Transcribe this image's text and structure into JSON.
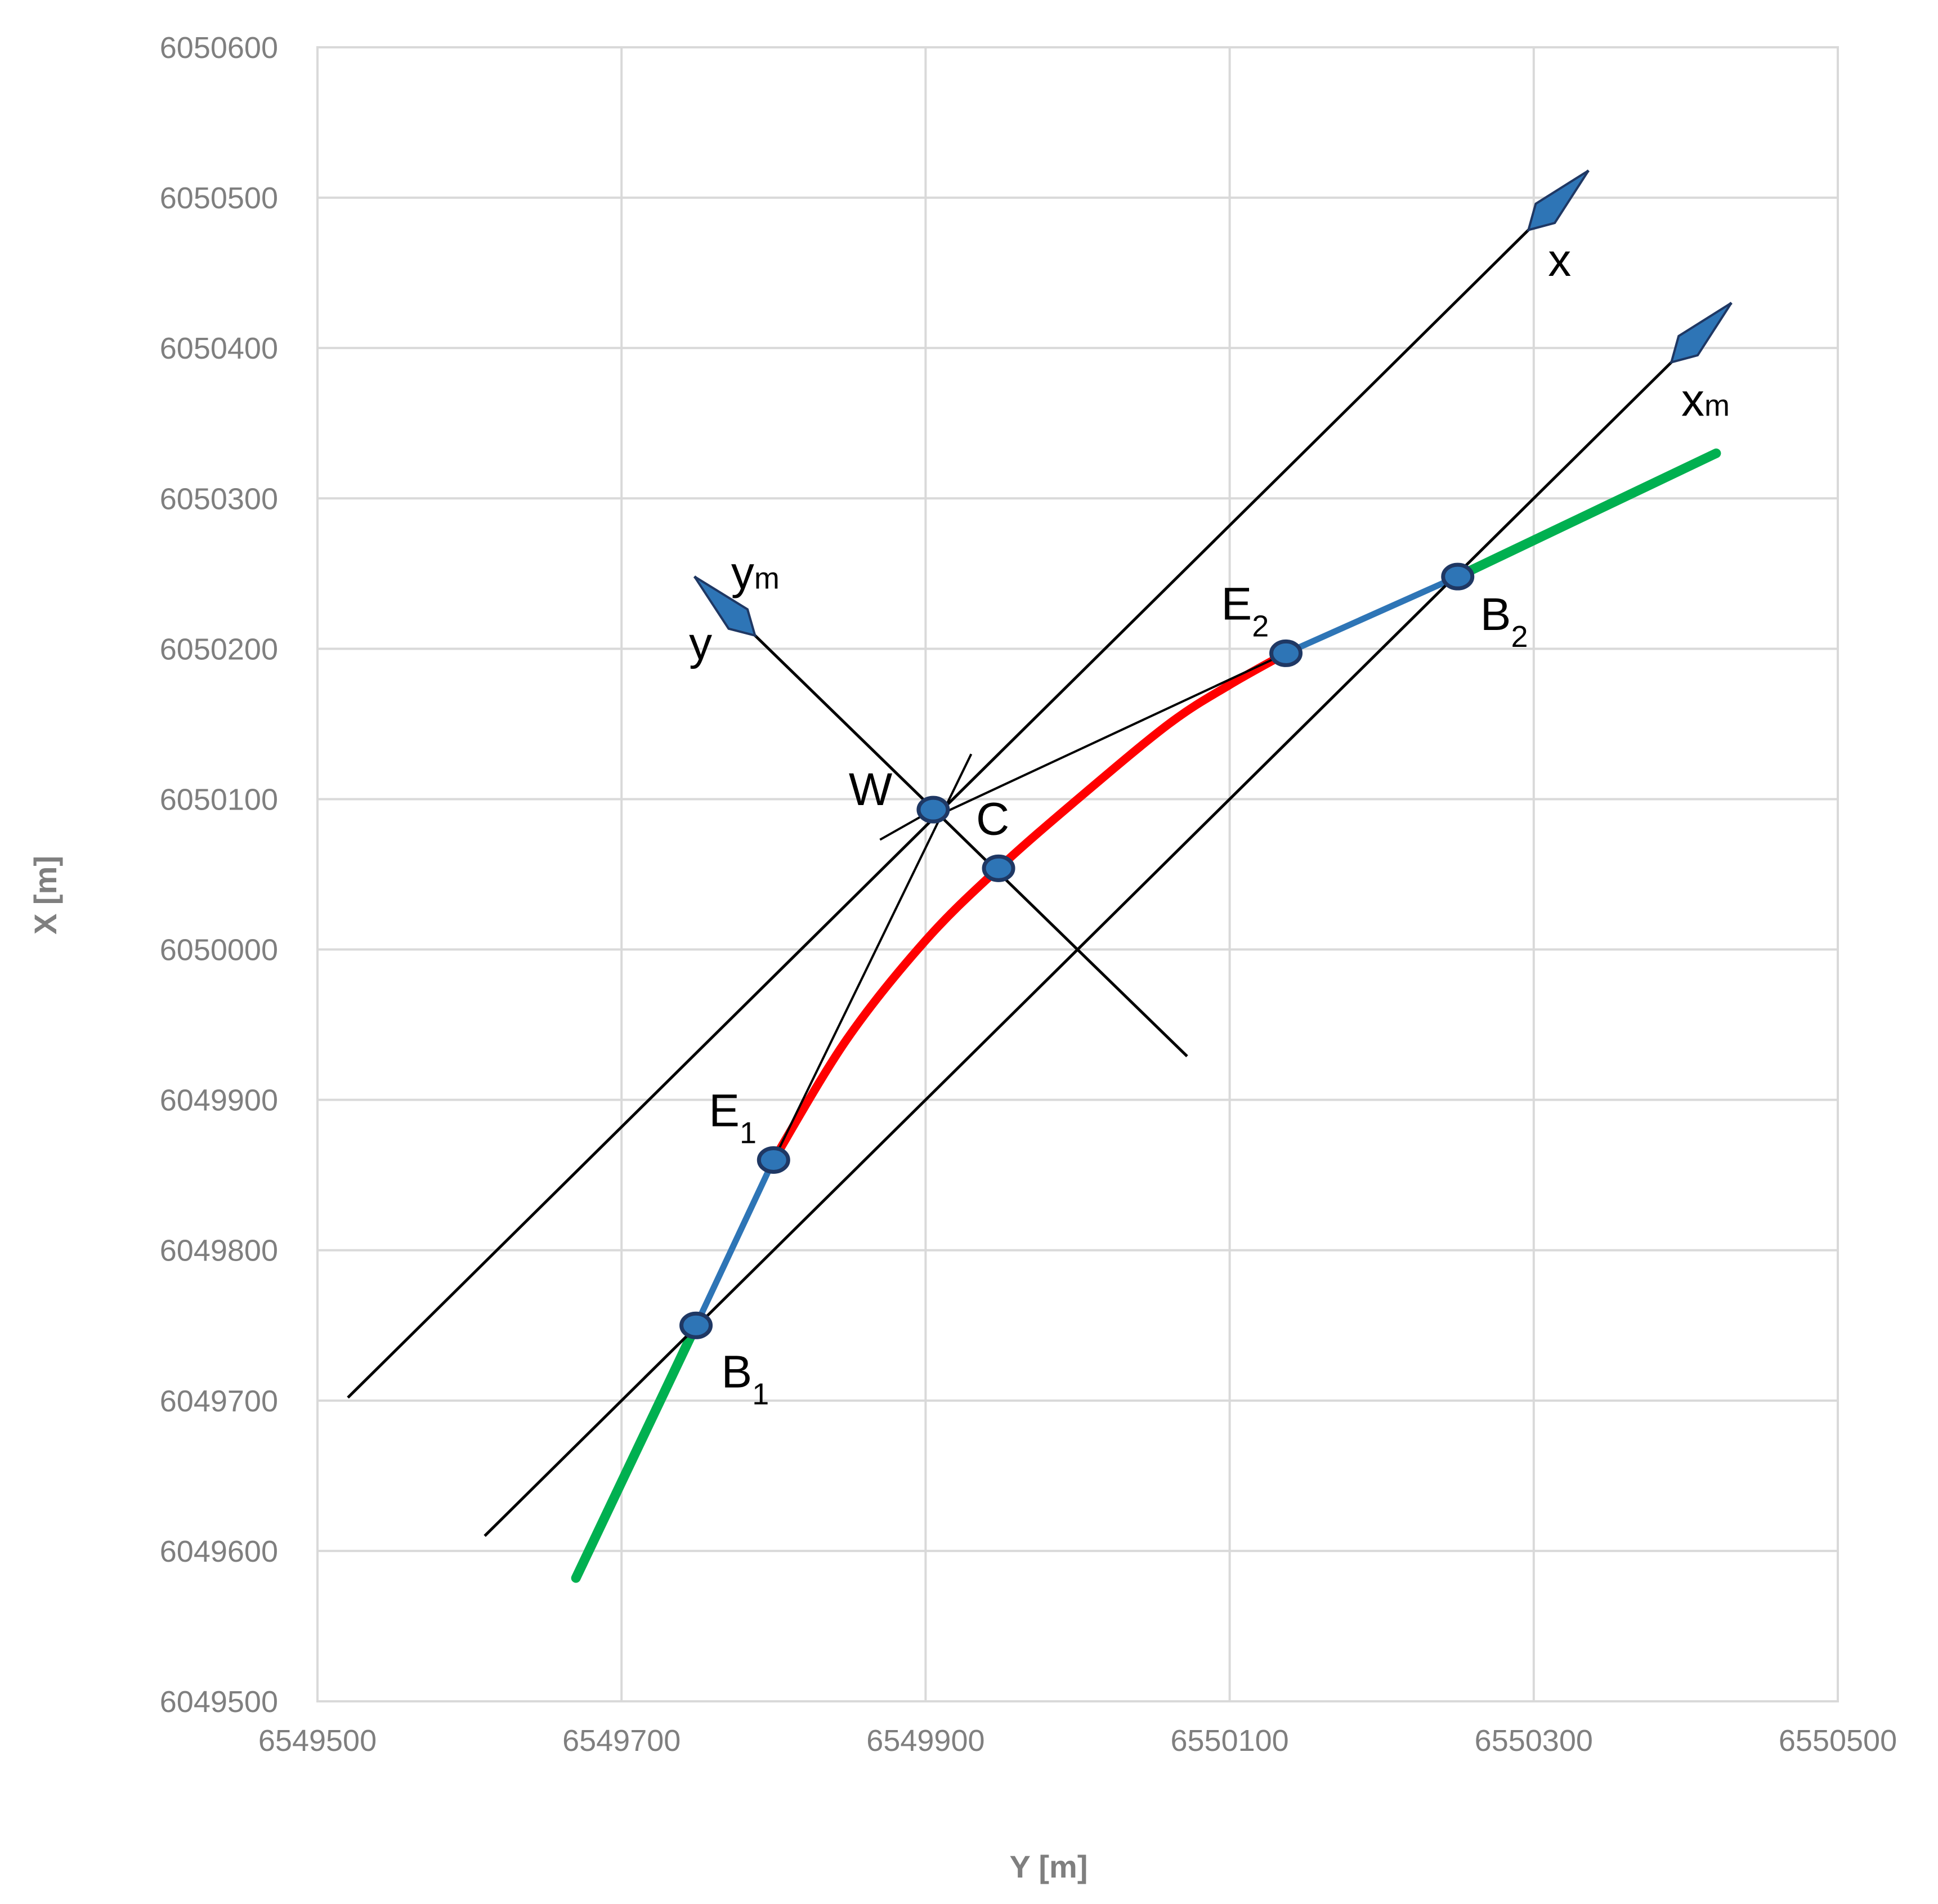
{
  "chart_data": {
    "type": "scatter",
    "title": "",
    "xlabel": "Y [m]",
    "ylabel": "X [m]",
    "xlim": [
      6549500,
      6550500
    ],
    "ylim": [
      6049500,
      6050600
    ],
    "x_ticks": [
      "6549500",
      "6549700",
      "6549900",
      "6550100",
      "6550300",
      "6550500"
    ],
    "y_ticks": [
      "6049500",
      "6049600",
      "6049700",
      "6049800",
      "6049900",
      "6050000",
      "6050100",
      "6050200",
      "6050300",
      "6050400",
      "6050500",
      "6050600"
    ],
    "grid": true,
    "legend": "none",
    "colors": {
      "grid": "#d9d9d9",
      "frame": "#d9d9d9",
      "tick_text": "#7f7f7f",
      "lines": "#000000",
      "tangent": "#2e75b6",
      "straight": "#00b050",
      "arc": "#ff0000",
      "marker_fill": "#2e75b6",
      "marker_edge": "#1f3864",
      "arrow": "#2e75b6"
    },
    "points": [
      {
        "name": "W",
        "label": "W",
        "sub": "",
        "x": 6549905,
        "y": 6050093
      },
      {
        "name": "C",
        "label": "C",
        "sub": "",
        "x": 6549948,
        "y": 6050054
      },
      {
        "name": "E1",
        "label": "E",
        "sub": "1",
        "x": 6549800,
        "y": 6049860
      },
      {
        "name": "E2",
        "label": "E",
        "sub": "2",
        "x": 6550137,
        "y": 6050197
      },
      {
        "name": "B1",
        "label": "B",
        "sub": "1",
        "x": 6549749,
        "y": 6049750
      },
      {
        "name": "B2",
        "label": "B",
        "sub": "2",
        "x": 6550250,
        "y": 6050248
      }
    ],
    "axis_lines": [
      {
        "name": "x-axis-line",
        "label": "x",
        "from": [
          6549520,
          6049702
        ],
        "to": [
          6550336,
          6050518
        ],
        "arrow": true
      },
      {
        "name": "xm-axis-line",
        "label": "xm",
        "from": [
          6549610,
          6049610
        ],
        "to": [
          6550430,
          6050430
        ],
        "arrow": true
      },
      {
        "name": "y-ym-axis-line",
        "label": "y / ym",
        "from": [
          6550072,
          6049929
        ],
        "to": [
          6549748,
          6050248
        ],
        "arrow": true
      }
    ],
    "tangent_lines": [
      {
        "name": "tangent-w-e2",
        "from": [
          6549910,
          6050090
        ],
        "to": [
          6550137,
          6050197
        ]
      },
      {
        "name": "tangent-w-e1",
        "from": [
          6549930,
          6050130
        ],
        "to": [
          6549800,
          6049860
        ]
      },
      {
        "name": "short-tick-w",
        "from": [
          6549870,
          6050073
        ],
        "to": [
          6549905,
          6050093
        ]
      }
    ],
    "transition_curves": [
      {
        "name": "transition-1",
        "from": [
          6549749,
          6049750
        ],
        "to": [
          6549800,
          6049860
        ]
      },
      {
        "name": "transition-2",
        "from": [
          6550137,
          6050197
        ],
        "to": [
          6550250,
          6050248
        ]
      }
    ],
    "straights": [
      {
        "name": "straight-1",
        "from": [
          6549670,
          6049582
        ],
        "to": [
          6549749,
          6049750
        ]
      },
      {
        "name": "straight-2",
        "from": [
          6550250,
          6050248
        ],
        "to": [
          6550420,
          6050330
        ]
      }
    ],
    "circular_arc": {
      "name": "circular-arc",
      "points": [
        [
          6549800,
          6049860
        ],
        [
          6549848,
          6049940
        ],
        [
          6549900,
          6050006
        ],
        [
          6549948,
          6050054
        ],
        [
          6550000,
          6050100
        ],
        [
          6550060,
          6050150
        ],
        [
          6550100,
          6050176
        ],
        [
          6550137,
          6050197
        ]
      ]
    },
    "axis_labels": [
      {
        "name": "label-x",
        "text": "x",
        "sub": "",
        "x": 6550317,
        "y": 6050448
      },
      {
        "name": "label-xm",
        "text": "x",
        "sub": "m",
        "x": 6550413,
        "y": 6050355
      },
      {
        "name": "label-ym",
        "text": "y",
        "sub": "m",
        "x": 6549788,
        "y": 6050240
      },
      {
        "name": "label-y",
        "text": "y",
        "sub": "",
        "x": 6549752,
        "y": 6050193
      }
    ]
  }
}
